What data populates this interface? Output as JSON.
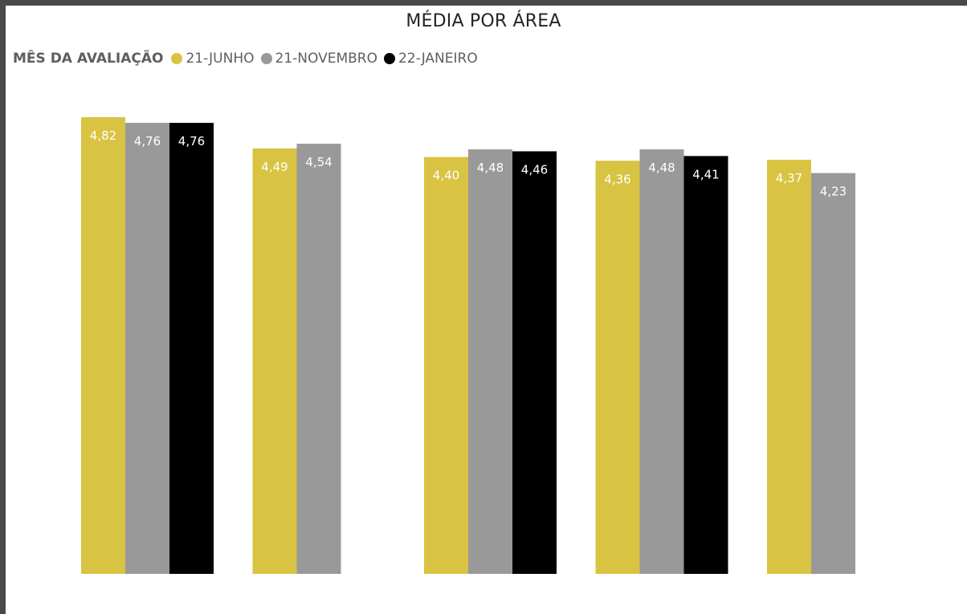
{
  "chart_data": {
    "type": "bar",
    "title": "MÉDIA POR ÁREA",
    "legend_title": "MÊS DA AVALIAÇÃO",
    "legend_position": "top-left",
    "categories": [
      "",
      "",
      "",
      "",
      ""
    ],
    "series": [
      {
        "name": "21-JUNHO",
        "color": "#d9c342",
        "label_color": "#ffffff",
        "values": [
          4.82,
          4.49,
          4.4,
          4.36,
          4.37
        ],
        "labels": [
          "4,82",
          "4,49",
          "4,40",
          "4,36",
          "4,37"
        ]
      },
      {
        "name": "21-NOVEMBRO",
        "color": "#999999",
        "label_color": "#ffffff",
        "values": [
          4.76,
          4.54,
          4.48,
          4.48,
          4.23
        ],
        "labels": [
          "4,76",
          "4,54",
          "4,48",
          "4,48",
          "4,23"
        ]
      },
      {
        "name": "22-JANEIRO",
        "color": "#000000",
        "label_color": "#ffffff",
        "values": [
          4.76,
          null,
          4.46,
          4.41,
          null
        ],
        "labels": [
          "4,76",
          null,
          "4,46",
          "4,41",
          null
        ]
      }
    ],
    "ylim": [
      0,
      4.82
    ],
    "grid": false,
    "xlabel": "",
    "ylabel": ""
  }
}
